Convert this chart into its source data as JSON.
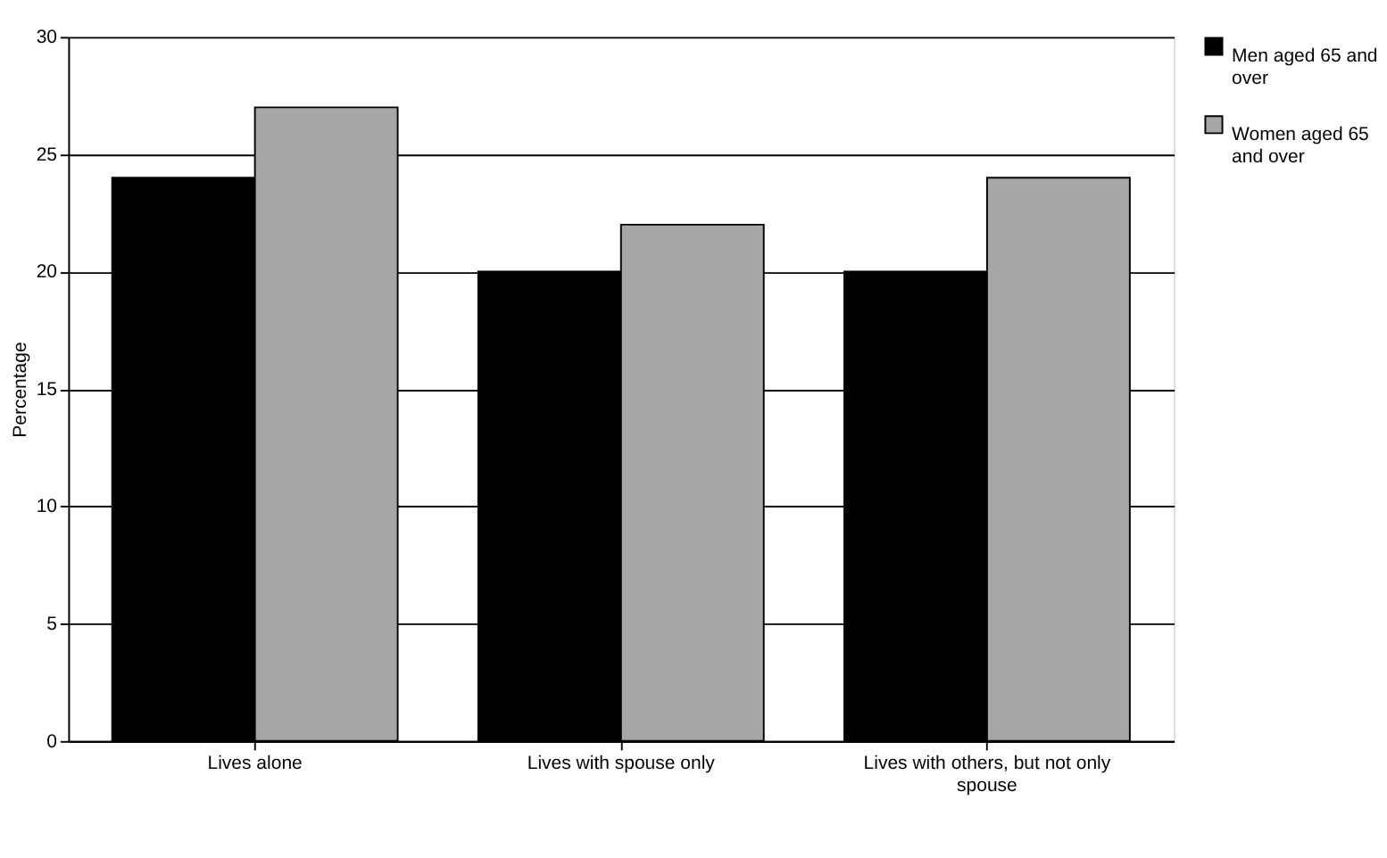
{
  "chart_data": {
    "type": "bar",
    "ylabel": "Percentage",
    "categories": [
      "Lives alone",
      "Lives with spouse only",
      "Lives with others, but not only spouse"
    ],
    "series": [
      {
        "name": "Men aged 65 and over",
        "color": "#000000",
        "values": [
          24,
          20,
          20
        ]
      },
      {
        "name": "Women aged 65 and over",
        "color": "#a6a6a6",
        "values": [
          27,
          22,
          24
        ]
      }
    ],
    "ylim": [
      0,
      30
    ],
    "yticks": [
      0,
      5,
      10,
      15,
      20,
      25,
      30
    ],
    "grid": "y",
    "legend": "right"
  }
}
